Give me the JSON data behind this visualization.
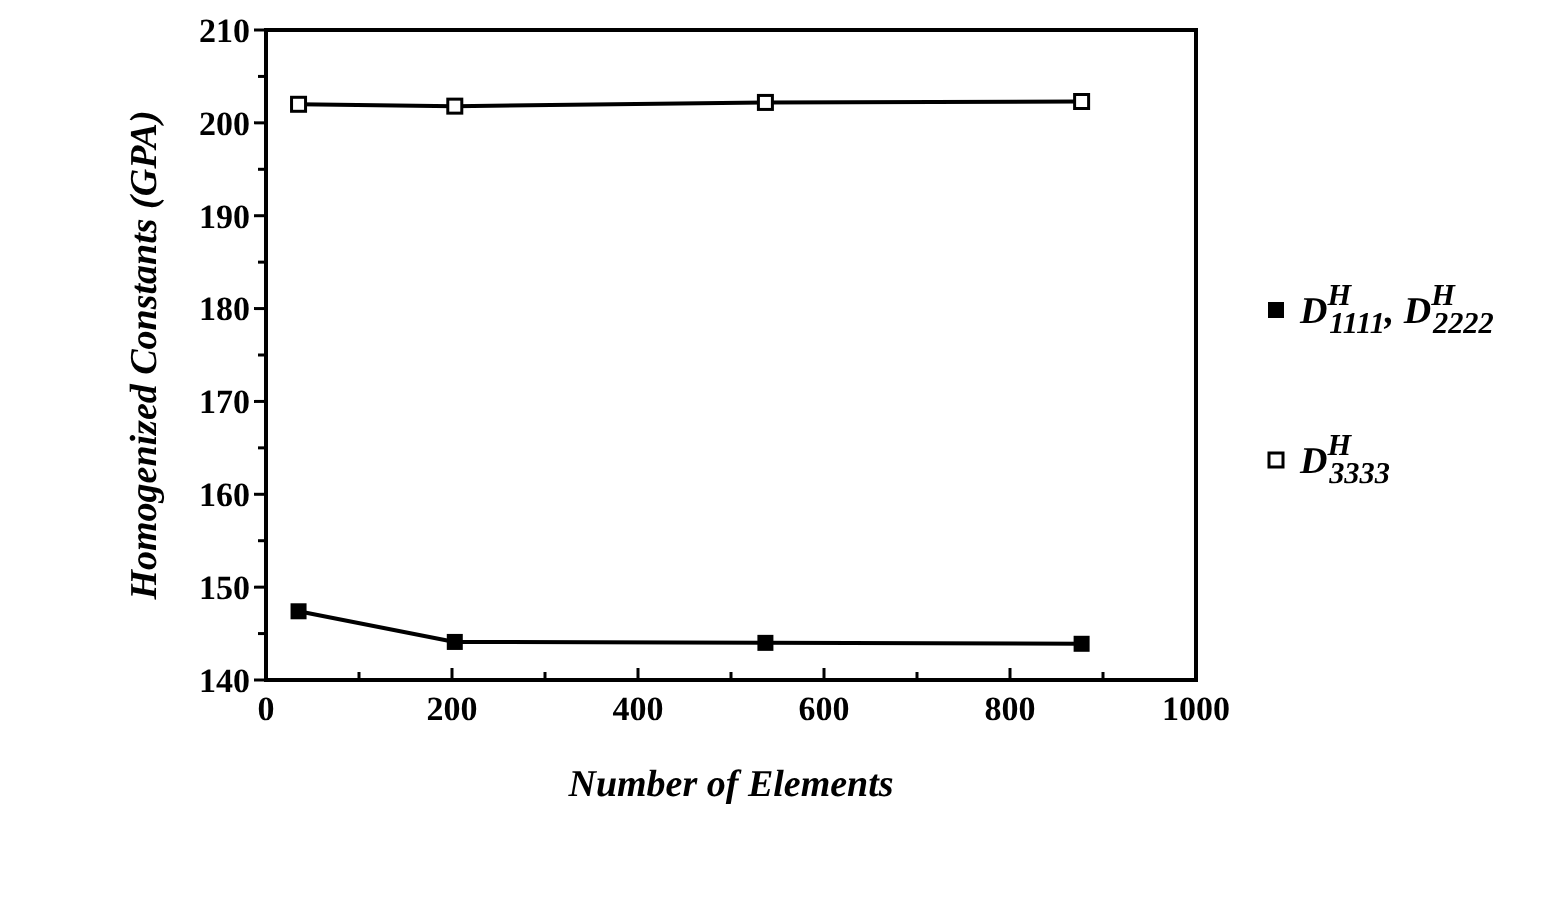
{
  "chart_data": {
    "type": "line",
    "xlabel": "Number of Elements",
    "ylabel": "Homogenized Constants (GPA)",
    "xlim": [
      0,
      1000
    ],
    "xticks": [
      0,
      {
        "value": 100,
        "label": null
      },
      200,
      {
        "value": 300,
        "label": null
      },
      400,
      {
        "value": 500,
        "label": null
      },
      600,
      {
        "value": 700,
        "label": null
      },
      800,
      {
        "value": 900,
        "label": null
      },
      1000
    ],
    "ylim": [
      140,
      210
    ],
    "yticks": [
      140,
      {
        "value": 145,
        "label": null
      },
      150,
      {
        "value": 155,
        "label": null
      },
      160,
      {
        "value": 165,
        "label": null
      },
      170,
      {
        "value": 175,
        "label": null
      },
      180,
      {
        "value": 185,
        "label": null
      },
      190,
      {
        "value": 195,
        "label": null
      },
      200,
      {
        "value": 205,
        "label": null
      },
      210
    ],
    "x": [
      35,
      203,
      537,
      877
    ],
    "series": [
      {
        "name": "D$^{H}$$_{1111}$, D$^{H}$$_{2222}$",
        "color": "#000000",
        "marker": "square",
        "values": [
          147.4,
          144.1,
          144.0,
          143.9
        ]
      },
      {
        "name": "D$^{H}$$_{3333}$",
        "color": "#000000",
        "marker": "square_open",
        "values": [
          202.0,
          201.8,
          202.2,
          202.3
        ]
      }
    ],
    "grid": false,
    "legend": "right",
    "line_style": "solid"
  }
}
